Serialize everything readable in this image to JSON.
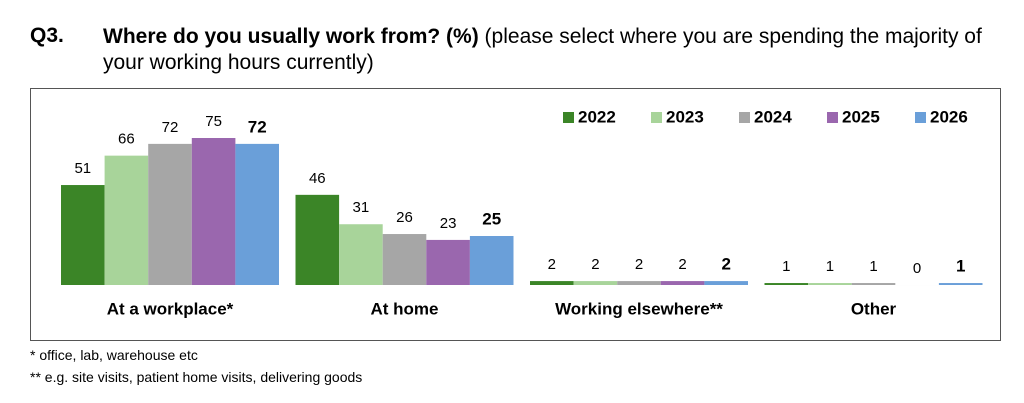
{
  "chart_data": {
    "type": "bar",
    "question_number": "Q3.",
    "title": "Where do you usually work from? (%)",
    "subtitle": "(please select where you are spending the majority of your working hours currently)",
    "categories": [
      "At a workplace*",
      "At home",
      "Working elsewhere**",
      "Other"
    ],
    "series": [
      {
        "name": "2022",
        "color": "#3b8527",
        "values": [
          51,
          46,
          2,
          1
        ]
      },
      {
        "name": "2023",
        "color": "#a8d49a",
        "values": [
          66,
          31,
          2,
          1
        ]
      },
      {
        "name": "2024",
        "color": "#a6a6a6",
        "values": [
          72,
          26,
          2,
          1
        ]
      },
      {
        "name": "2025",
        "color": "#9a67ae",
        "values": [
          75,
          23,
          2,
          0
        ]
      },
      {
        "name": "2026",
        "color": "#6a9fd9",
        "values": [
          72,
          25,
          2,
          1
        ],
        "bold_labels": true
      }
    ],
    "legend": "top-right",
    "footnotes": [
      "* office, lab, warehouse etc",
      "** e.g. site visits, patient home visits, delivering goods"
    ]
  }
}
